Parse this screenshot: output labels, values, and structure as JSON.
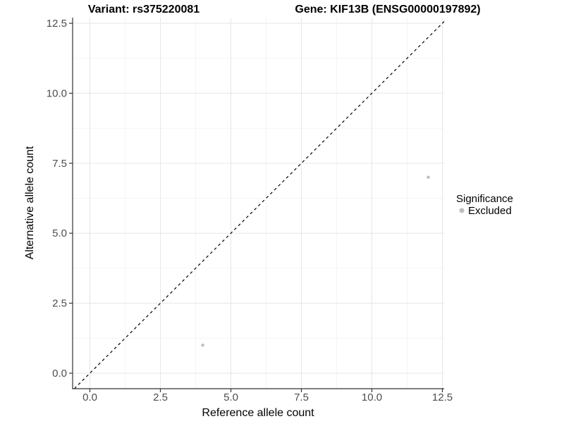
{
  "figure": {
    "title_left": "Variant: rs375220081",
    "title_right": "Gene: KIF13B (ENSG00000197892)"
  },
  "chart_data": {
    "type": "scatter",
    "title_left": "Variant: rs375220081",
    "title_right": "Gene: KIF13B (ENSG00000197892)",
    "xlabel": "Reference allele count",
    "ylabel": "Alternative allele count",
    "xlim": [
      -0.61,
      12.56
    ],
    "ylim": [
      -0.55,
      12.7
    ],
    "x_ticks": {
      "values": [
        0,
        2.5,
        5,
        7.5,
        10,
        12.5
      ],
      "labels": [
        "0.0",
        "2.5",
        "5.0",
        "7.5",
        "10.0",
        "12.5"
      ]
    },
    "y_ticks": {
      "values": [
        0,
        2.5,
        5,
        7.5,
        10,
        12.5
      ],
      "labels": [
        "0.0",
        "2.5",
        "5.0",
        "7.5",
        "10.0",
        "12.5"
      ]
    },
    "x_minor": [
      1.25,
      3.75,
      6.25,
      8.75,
      11.25
    ],
    "y_minor": [
      1.25,
      3.75,
      6.25,
      8.75,
      11.25
    ],
    "grid": true,
    "identity_line": {
      "type": "y=x",
      "style": "dashed",
      "color": "#000000"
    },
    "series": [
      {
        "name": "Excluded",
        "color": "#bebebe",
        "points": [
          {
            "x": 4,
            "y": 1
          },
          {
            "x": 12,
            "y": 7
          }
        ]
      }
    ],
    "legend": {
      "title": "Significance",
      "position": "right",
      "items": [
        {
          "label": "Excluded",
          "color": "#bebebe"
        }
      ]
    },
    "colors": {
      "grid_major": "#e6e6e6",
      "grid_minor": "#f2f2f2",
      "axis_line": "#333333",
      "tick_label": "#4d4d4d",
      "point": "#bebebe"
    }
  }
}
